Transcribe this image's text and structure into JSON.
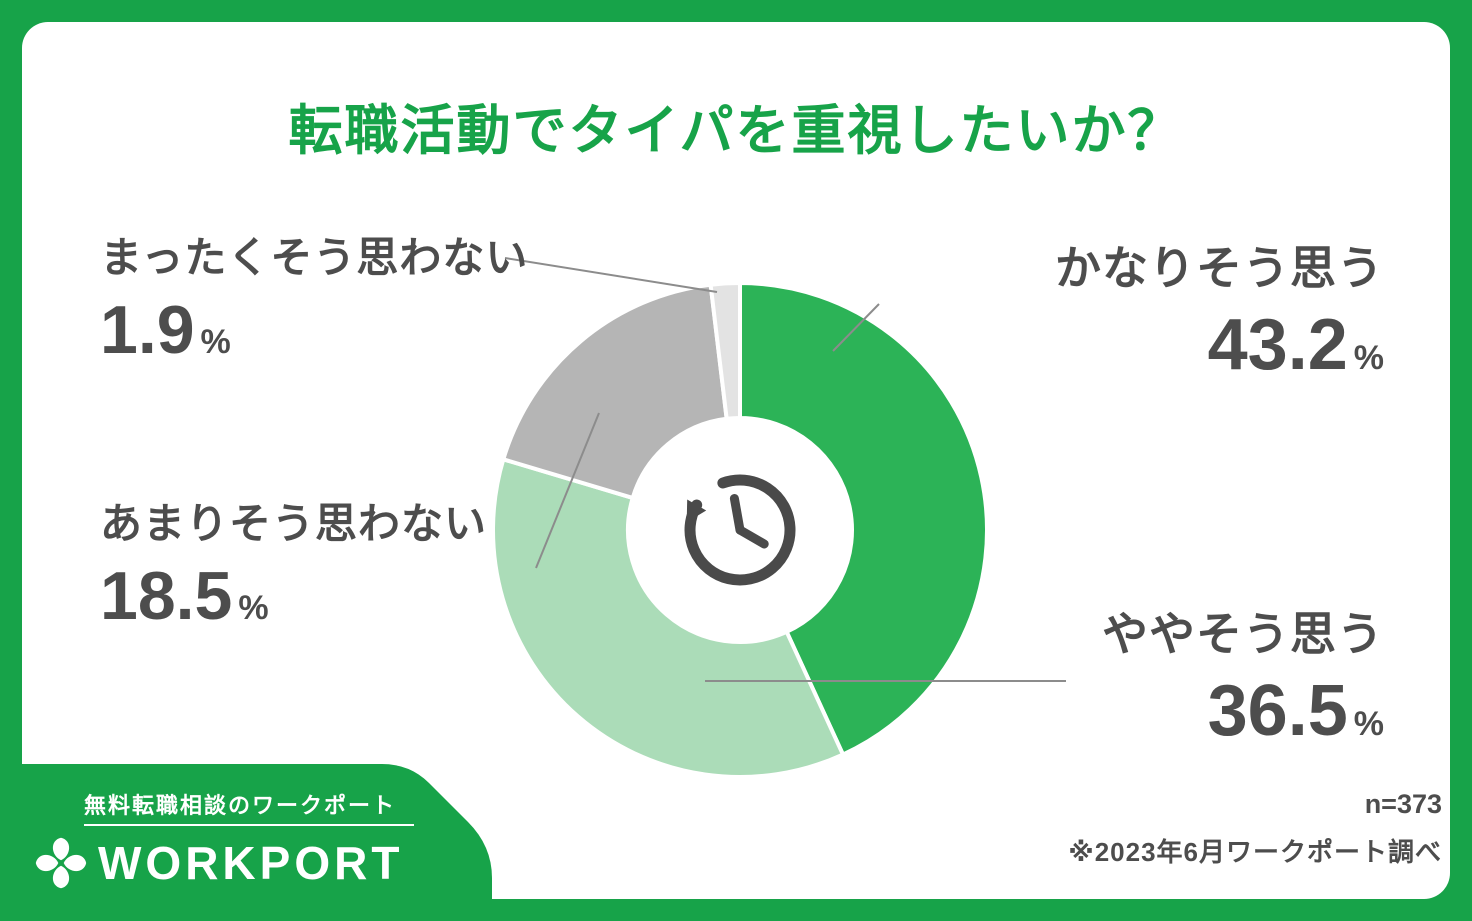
{
  "title": "転職活動でタイパを重視したいか？",
  "chart_data": {
    "type": "pie",
    "subtype": "donut",
    "title": "転職活動でタイパを重視したいか？",
    "unit": "%",
    "start": "top",
    "direction": "clockwise",
    "segments": [
      {
        "label": "かなりそう思う",
        "value": 43.2,
        "color": "#2cb357"
      },
      {
        "label": "ややそう思う",
        "value": 36.5,
        "color": "#abdcb8"
      },
      {
        "label": "あまりそう思わない",
        "value": 18.5,
        "color": "#b5b5b5"
      },
      {
        "label": "まったくそう思わない",
        "value": 1.9,
        "color": "#e3e3e3"
      }
    ],
    "center_icon": "clock-history-icon",
    "legend_position": "callout-labels",
    "sample_size": "n=373",
    "source_note": "※2023年6月ワークポート調べ"
  },
  "callouts": {
    "strongly_agree": {
      "label": "かなりそう思う",
      "value": "43.2",
      "unit": "%"
    },
    "somewhat_agree": {
      "label": "ややそう思う",
      "value": "36.5",
      "unit": "%"
    },
    "somewhat_disagree": {
      "label": "あまりそう思わない",
      "value": "18.5",
      "unit": "%"
    },
    "strongly_disagree": {
      "label": "まったくそう思わない",
      "value": "1.9",
      "unit": "%"
    }
  },
  "footer": {
    "tagline": "無料転職相談のワークポート",
    "brand": "WORKPORT",
    "brand_icon": "clover-icon",
    "sample_size": "n=373",
    "source_note": "※2023年6月ワークポート調べ"
  },
  "colors": {
    "frame_green": "#17a349",
    "title_green": "#17a349",
    "text_gray": "#4d4d4d",
    "callout_line_gray": "#8c8c8c",
    "icon_gray": "#4a4a4a"
  }
}
